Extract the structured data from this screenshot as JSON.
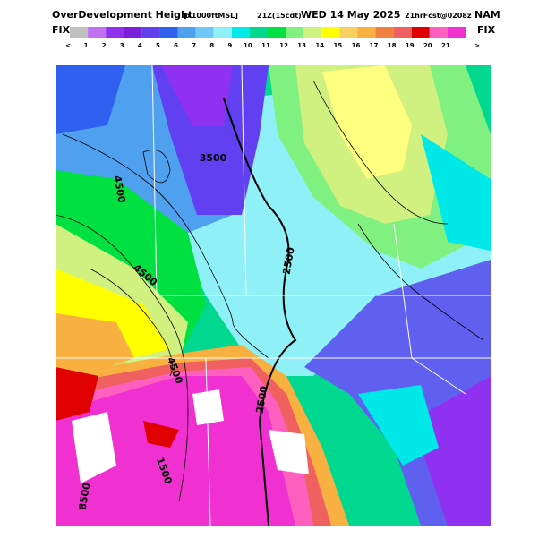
{
  "header": {
    "title": "OverDevelopment Height",
    "units": "[x1000ftMSL]",
    "valid_time": "21Z(15cdt)",
    "date": "WED 14 May 2025",
    "forecast": "21hrFcst@0208z",
    "model": "NAM"
  },
  "colorbar": {
    "left_label": "FIX",
    "right_label": "FIX",
    "colors": [
      "#c0c0c0",
      "#c070f0",
      "#9030f0",
      "#7a20d8",
      "#6040f0",
      "#3060f0",
      "#50a0f0",
      "#70c8f8",
      "#90f0f8",
      "#00e8e8",
      "#00d890",
      "#00e040",
      "#80f080",
      "#d0f080",
      "#ffff00",
      "#f8d060",
      "#f8b040",
      "#f08040",
      "#f06060",
      "#e00000",
      "#ff60c0",
      "#f030d0"
    ],
    "labels": [
      "<",
      "1",
      "2",
      "3",
      "4",
      "5",
      "6",
      "7",
      "8",
      "9",
      "10",
      "11",
      "12",
      "13",
      "14",
      "15",
      "16",
      "17",
      "18",
      "19",
      "20",
      "21",
      ">"
    ]
  },
  "contour_labels": [
    "3500",
    "4500",
    "4500",
    "2500",
    "4500",
    "2500",
    "1500",
    "8500"
  ]
}
